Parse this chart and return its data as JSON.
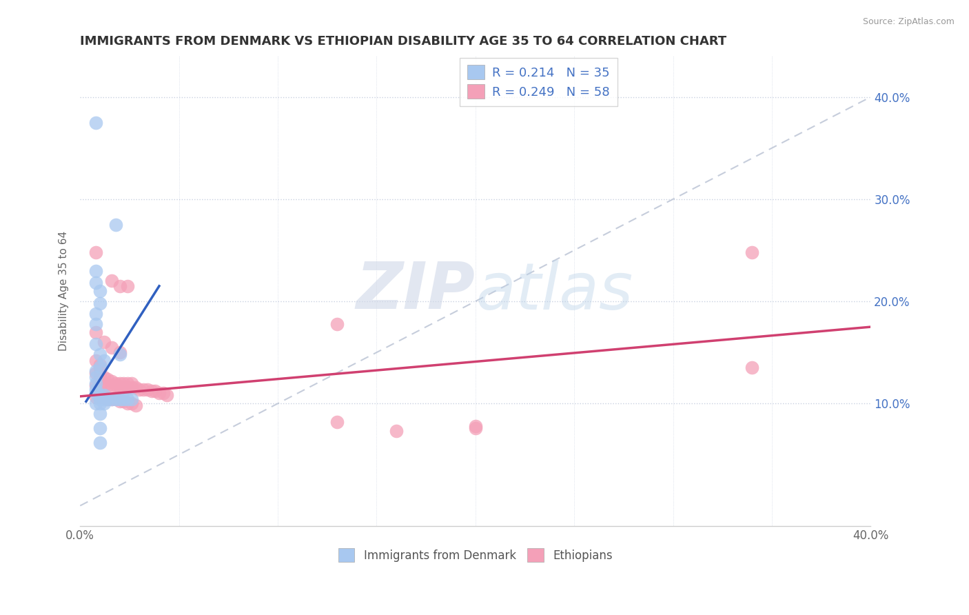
{
  "title": "IMMIGRANTS FROM DENMARK VS ETHIOPIAN DISABILITY AGE 35 TO 64 CORRELATION CHART",
  "source": "Source: ZipAtlas.com",
  "ylabel": "Disability Age 35 to 64",
  "right_yticks": [
    "10.0%",
    "20.0%",
    "30.0%",
    "40.0%"
  ],
  "right_ytick_vals": [
    0.1,
    0.2,
    0.3,
    0.4
  ],
  "xmin": 0.0,
  "xmax": 0.4,
  "ymin": -0.02,
  "ymax": 0.44,
  "legend1_label": "R = 0.214   N = 35",
  "legend2_label": "R = 0.249   N = 58",
  "denmark_color": "#a8c8f0",
  "ethiopia_color": "#f4a0b8",
  "denmark_line_color": "#3060c0",
  "ethiopia_line_color": "#d04070",
  "ref_line_color": "#c0c8d8",
  "denmark_scatter": [
    [
      0.008,
      0.375
    ],
    [
      0.018,
      0.275
    ],
    [
      0.008,
      0.23
    ],
    [
      0.008,
      0.218
    ],
    [
      0.01,
      0.21
    ],
    [
      0.01,
      0.198
    ],
    [
      0.008,
      0.188
    ],
    [
      0.008,
      0.178
    ],
    [
      0.008,
      0.158
    ],
    [
      0.01,
      0.148
    ],
    [
      0.02,
      0.148
    ],
    [
      0.012,
      0.142
    ],
    [
      0.01,
      0.136
    ],
    [
      0.008,
      0.132
    ],
    [
      0.008,
      0.126
    ],
    [
      0.008,
      0.12
    ],
    [
      0.008,
      0.114
    ],
    [
      0.008,
      0.11
    ],
    [
      0.01,
      0.108
    ],
    [
      0.012,
      0.108
    ],
    [
      0.01,
      0.104
    ],
    [
      0.012,
      0.104
    ],
    [
      0.014,
      0.104
    ],
    [
      0.016,
      0.104
    ],
    [
      0.018,
      0.104
    ],
    [
      0.02,
      0.104
    ],
    [
      0.022,
      0.104
    ],
    [
      0.024,
      0.104
    ],
    [
      0.026,
      0.104
    ],
    [
      0.008,
      0.1
    ],
    [
      0.01,
      0.1
    ],
    [
      0.012,
      0.1
    ],
    [
      0.01,
      0.09
    ],
    [
      0.01,
      0.076
    ],
    [
      0.01,
      0.062
    ]
  ],
  "ethiopia_scatter": [
    [
      0.008,
      0.248
    ],
    [
      0.016,
      0.22
    ],
    [
      0.02,
      0.215
    ],
    [
      0.024,
      0.215
    ],
    [
      0.34,
      0.248
    ],
    [
      0.34,
      0.135
    ],
    [
      0.2,
      0.076
    ],
    [
      0.13,
      0.178
    ],
    [
      0.008,
      0.17
    ],
    [
      0.012,
      0.16
    ],
    [
      0.016,
      0.155
    ],
    [
      0.02,
      0.15
    ],
    [
      0.008,
      0.142
    ],
    [
      0.01,
      0.138
    ],
    [
      0.01,
      0.134
    ],
    [
      0.008,
      0.13
    ],
    [
      0.01,
      0.128
    ],
    [
      0.012,
      0.126
    ],
    [
      0.014,
      0.124
    ],
    [
      0.016,
      0.122
    ],
    [
      0.018,
      0.12
    ],
    [
      0.02,
      0.12
    ],
    [
      0.022,
      0.12
    ],
    [
      0.024,
      0.12
    ],
    [
      0.026,
      0.12
    ],
    [
      0.008,
      0.118
    ],
    [
      0.01,
      0.118
    ],
    [
      0.012,
      0.118
    ],
    [
      0.014,
      0.118
    ],
    [
      0.016,
      0.118
    ],
    [
      0.018,
      0.118
    ],
    [
      0.02,
      0.116
    ],
    [
      0.022,
      0.116
    ],
    [
      0.024,
      0.116
    ],
    [
      0.026,
      0.116
    ],
    [
      0.028,
      0.116
    ],
    [
      0.03,
      0.114
    ],
    [
      0.032,
      0.114
    ],
    [
      0.034,
      0.114
    ],
    [
      0.036,
      0.112
    ],
    [
      0.038,
      0.112
    ],
    [
      0.04,
      0.11
    ],
    [
      0.042,
      0.11
    ],
    [
      0.044,
      0.108
    ],
    [
      0.008,
      0.106
    ],
    [
      0.01,
      0.106
    ],
    [
      0.012,
      0.106
    ],
    [
      0.014,
      0.104
    ],
    [
      0.016,
      0.104
    ],
    [
      0.018,
      0.104
    ],
    [
      0.02,
      0.102
    ],
    [
      0.022,
      0.102
    ],
    [
      0.024,
      0.1
    ],
    [
      0.026,
      0.1
    ],
    [
      0.028,
      0.098
    ],
    [
      0.13,
      0.082
    ],
    [
      0.2,
      0.078
    ],
    [
      0.16,
      0.073
    ]
  ],
  "denmark_trendline": [
    [
      0.003,
      0.102
    ],
    [
      0.04,
      0.215
    ]
  ],
  "ethiopia_trendline": [
    [
      0.0,
      0.107
    ],
    [
      0.4,
      0.175
    ]
  ],
  "ref_trendline": [
    [
      0.0,
      0.0
    ],
    [
      0.4,
      0.4
    ]
  ]
}
